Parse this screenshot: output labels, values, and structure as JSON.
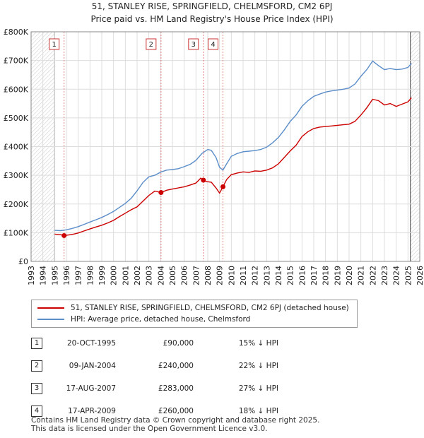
{
  "title_line1": "51, STANLEY RISE, SPRINGFIELD, CHELMSFORD, CM2 6PJ",
  "title_line2": "Price paid vs. HM Land Registry's House Price Index (HPI)",
  "chart_data": {
    "type": "line",
    "title": "51, STANLEY RISE, SPRINGFIELD, CHELMSFORD, CM2 6PJ — Price paid vs. HM Land Registry's House Price Index (HPI)",
    "xlim": [
      1993,
      2026
    ],
    "ylim": [
      0,
      800000
    ],
    "y_ticks": [
      0,
      100000,
      200000,
      300000,
      400000,
      500000,
      600000,
      700000,
      800000
    ],
    "y_tick_labels": [
      "£0",
      "£100K",
      "£200K",
      "£300K",
      "£400K",
      "£500K",
      "£600K",
      "£700K",
      "£800K"
    ],
    "x_ticks": [
      1993,
      1994,
      1995,
      1996,
      1997,
      1998,
      1999,
      2000,
      2001,
      2002,
      2003,
      2004,
      2005,
      2006,
      2007,
      2008,
      2009,
      2010,
      2011,
      2012,
      2013,
      2014,
      2015,
      2016,
      2017,
      2018,
      2019,
      2020,
      2021,
      2022,
      2023,
      2024,
      2025,
      2026
    ],
    "shaded_ranges": [
      [
        1993,
        1995.0
      ],
      [
        2025.2,
        2026
      ]
    ],
    "series": [
      {
        "name": "51, STANLEY RISE, SPRINGFIELD, CHELMSFORD, CM2 6PJ (detached house)",
        "color": "#cc0000",
        "x": [
          1995.0,
          1995.5,
          1995.8,
          1996.2,
          1996.6,
          1997,
          1997.5,
          1998,
          1998.5,
          1999,
          1999.5,
          2000,
          2000.5,
          2001,
          2001.5,
          2002,
          2002.5,
          2003,
          2003.5,
          2004.03,
          2004.5,
          2005,
          2005.5,
          2006,
          2006.5,
          2007,
          2007.4,
          2007.63,
          2007.9,
          2008.3,
          2008.7,
          2009.0,
          2009.29,
          2009.6,
          2010,
          2010.5,
          2011,
          2011.5,
          2012,
          2012.5,
          2013,
          2013.5,
          2014,
          2014.5,
          2015,
          2015.5,
          2016,
          2016.5,
          2017,
          2017.5,
          2018,
          2018.5,
          2019,
          2019.5,
          2020,
          2020.5,
          2021,
          2021.5,
          2022,
          2022.5,
          2023,
          2023.5,
          2024,
          2024.5,
          2025,
          2025.3
        ],
        "y": [
          95000,
          93000,
          90000,
          92000,
          95000,
          99000,
          106000,
          113000,
          120000,
          126000,
          134000,
          143000,
          156000,
          168000,
          180000,
          190000,
          210000,
          230000,
          245000,
          240000,
          248000,
          252000,
          256000,
          260000,
          266000,
          273000,
          290000,
          283000,
          278000,
          276000,
          256000,
          238000,
          260000,
          285000,
          302000,
          308000,
          312000,
          310000,
          315000,
          314000,
          318000,
          326000,
          340000,
          362000,
          385000,
          405000,
          435000,
          452000,
          463000,
          468000,
          470000,
          472000,
          474000,
          476000,
          478000,
          488000,
          510000,
          535000,
          565000,
          560000,
          545000,
          550000,
          540000,
          548000,
          556000,
          570000
        ]
      },
      {
        "name": "HPI: Average price, detached house, Chelmsford",
        "color": "#5b8dc9",
        "x": [
          1995.0,
          1995.5,
          1996,
          1996.5,
          1997,
          1997.5,
          1998,
          1998.5,
          1999,
          1999.5,
          2000,
          2000.5,
          2001,
          2001.5,
          2002,
          2002.5,
          2003,
          2003.5,
          2004,
          2004.5,
          2005,
          2005.5,
          2006,
          2006.5,
          2007,
          2007.5,
          2008,
          2008.3,
          2008.7,
          2009,
          2009.29,
          2009.6,
          2010,
          2010.5,
          2011,
          2011.5,
          2012,
          2012.5,
          2013,
          2013.5,
          2014,
          2014.5,
          2015,
          2015.5,
          2016,
          2016.5,
          2017,
          2017.5,
          2018,
          2018.5,
          2019,
          2019.5,
          2020,
          2020.5,
          2021,
          2021.5,
          2022,
          2022.5,
          2023,
          2023.5,
          2024,
          2024.5,
          2025,
          2025.3
        ],
        "y": [
          108000,
          107000,
          110000,
          115000,
          121000,
          129000,
          137000,
          145000,
          153000,
          163000,
          174000,
          188000,
          202000,
          220000,
          246000,
          275000,
          295000,
          300000,
          311000,
          318000,
          320000,
          323000,
          330000,
          338000,
          352000,
          376000,
          390000,
          387000,
          362000,
          328000,
          318000,
          340000,
          366000,
          376000,
          382000,
          384000,
          386000,
          390000,
          398000,
          413000,
          432000,
          458000,
          488000,
          510000,
          540000,
          560000,
          575000,
          583000,
          590000,
          594000,
          597000,
          600000,
          604000,
          618000,
          645000,
          668000,
          698000,
          682000,
          668000,
          672000,
          668000,
          670000,
          676000,
          690000
        ]
      }
    ],
    "sales": [
      {
        "n": "1",
        "x": 1995.8,
        "price": 90000
      },
      {
        "n": "2",
        "x": 2004.03,
        "price": 240000
      },
      {
        "n": "3",
        "x": 2007.63,
        "price": 283000
      },
      {
        "n": "4",
        "x": 2009.29,
        "price": 260000
      }
    ]
  },
  "legend": {
    "property_label": "51, STANLEY RISE, SPRINGFIELD, CHELMSFORD, CM2 6PJ (detached house)",
    "hpi_label": "HPI: Average price, detached house, Chelmsford",
    "property_color": "#cc0000",
    "hpi_color": "#5b8dc9"
  },
  "table": [
    {
      "n": "1",
      "date": "20-OCT-1995",
      "price": "£90,000",
      "hpi": "15% ↓ HPI"
    },
    {
      "n": "2",
      "date": "09-JAN-2004",
      "price": "£240,000",
      "hpi": "22% ↓ HPI"
    },
    {
      "n": "3",
      "date": "17-AUG-2007",
      "price": "£283,000",
      "hpi": "27% ↓ HPI"
    },
    {
      "n": "4",
      "date": "17-APR-2009",
      "price": "£260,000",
      "hpi": "18% ↓ HPI"
    }
  ],
  "footer_line1": "Contains HM Land Registry data © Crown copyright and database right 2025.",
  "footer_line2": "This data is licensed under the Open Government Licence v3.0."
}
